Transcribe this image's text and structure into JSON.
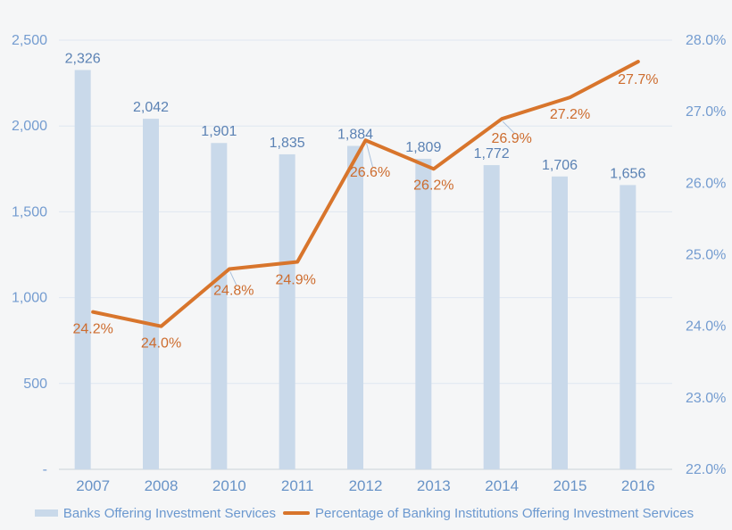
{
  "colors": {
    "background": "#f5f6f7",
    "bar_fill": "#c9d9ea",
    "line_stroke": "#d8752c",
    "bar_label_text": "#5b82b4",
    "line_label_text": "#cd6c2e",
    "axis_tick_text": "#749cd0",
    "year_tick_text": "#6893c7",
    "legend_text": "#6b98cf",
    "gridline": "#dfe7f1",
    "axis_line": "#d8dee4",
    "leader_line": "#a8c0dc"
  },
  "chart_data": {
    "type": "bar",
    "subtype": "combo-bar-line-dual-axis",
    "categories": [
      "2007",
      "2008",
      "2010",
      "2011",
      "2012",
      "2013",
      "2014",
      "2015",
      "2016"
    ],
    "series": [
      {
        "name": "Banks Offering Investment Services",
        "series_type": "bar",
        "axis": "left",
        "values": [
          2326,
          2042,
          1901,
          1835,
          1884,
          1809,
          1772,
          1706,
          1656
        ],
        "value_labels": [
          "2,326",
          "2,042",
          "1,901",
          "1,835",
          "1,884",
          "1,809",
          "1,772",
          "1,706",
          "1,656"
        ]
      },
      {
        "name": "Percentage of Banking Institutions Offering Investment Services",
        "series_type": "line",
        "axis": "right",
        "values": [
          24.2,
          24.0,
          24.8,
          24.9,
          26.6,
          26.2,
          26.9,
          27.2,
          27.7
        ],
        "value_labels": [
          "24.2%",
          "24.0%",
          "24.8%",
          "24.9%",
          "26.6%",
          "26.2%",
          "26.9%",
          "27.2%",
          "27.7%"
        ]
      }
    ],
    "left_axis": {
      "min": 0,
      "max": 2500,
      "tick_values": [
        0,
        500,
        1000,
        1500,
        2000,
        2500
      ],
      "tick_labels": [
        "-",
        "500",
        "1,000",
        "1,500",
        "2,000",
        "2,500"
      ]
    },
    "right_axis": {
      "min": 22,
      "max": 28,
      "tick_values": [
        22,
        23,
        24,
        25,
        26,
        27,
        28
      ],
      "tick_labels": [
        "22.0%",
        "23.0%",
        "24.0%",
        "25.0%",
        "26.0%",
        "27.0%",
        "28.0%"
      ]
    },
    "grid": true,
    "legend_position": "bottom",
    "title": ""
  }
}
